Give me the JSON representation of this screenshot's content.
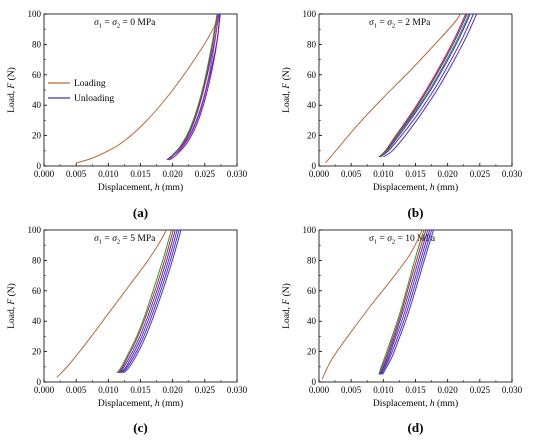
{
  "colors": {
    "loading": "#b8693a",
    "unloading": "#4a2ec6",
    "extra_unloading": [
      "#d11f1f",
      "#1f9a3c",
      "#d11fc4",
      "#f0a018",
      "#1c8fc9"
    ]
  },
  "legend": {
    "loading_label": "Loading",
    "unloading_label": "Unloading"
  },
  "chart_data": [
    {
      "type": "line",
      "panel_label": "(a)",
      "condition": {
        "sym1": "σ",
        "sub1": "1",
        "eq1": " = ",
        "sym2": "σ",
        "sub2": "2",
        "value": " = 0 MPa"
      },
      "xlabel": {
        "text": "Displacement, ",
        "var": "h",
        "unit": " (mm)"
      },
      "ylabel": {
        "text": "Load, ",
        "var": "F",
        "unit": " (N)"
      },
      "xlim": [
        0,
        0.03
      ],
      "ylim": [
        0,
        100
      ],
      "xticks": [
        "0.000",
        "0.005",
        "0.010",
        "0.015",
        "0.020",
        "0.025",
        "0.030"
      ],
      "yticks": [
        "0",
        "20",
        "40",
        "60",
        "80",
        "100"
      ],
      "legend": true,
      "series": [
        {
          "role": "loading",
          "x": [
            0.005,
            0.008,
            0.012,
            0.016,
            0.02,
            0.024,
            0.0265,
            0.027
          ],
          "y": [
            2,
            6,
            15,
            30,
            50,
            74,
            92,
            100
          ]
        },
        {
          "role": "unloading",
          "x": [
            0.0274,
            0.0268,
            0.0255,
            0.0242,
            0.0228,
            0.0214,
            0.0201,
            0.0192
          ],
          "y": [
            100,
            80,
            55,
            35,
            21,
            12,
            7,
            4
          ]
        },
        {
          "role": "unloading",
          "x": [
            0.0272,
            0.0264,
            0.0251,
            0.0238,
            0.0225,
            0.0212,
            0.0199,
            0.0191
          ],
          "y": [
            100,
            80,
            55,
            35,
            21,
            12,
            7,
            4
          ]
        },
        {
          "role": "unloading",
          "x": [
            0.0273,
            0.027,
            0.0262,
            0.0251,
            0.0238,
            0.0222,
            0.0205,
            0.0195
          ],
          "y": [
            100,
            85,
            65,
            45,
            28,
            15,
            7,
            4
          ]
        },
        {
          "role": "extra",
          "x": [
            0.027,
            0.0262,
            0.025,
            0.0237,
            0.0224,
            0.0211,
            0.02,
            0.0193
          ],
          "y": [
            100,
            80,
            55,
            35,
            21,
            12,
            7,
            4
          ]
        },
        {
          "role": "extra",
          "x": [
            0.0269,
            0.0261,
            0.0249,
            0.0236,
            0.0223,
            0.021,
            0.0199,
            0.0194
          ],
          "y": [
            100,
            80,
            55,
            35,
            21,
            12,
            7,
            4
          ]
        },
        {
          "role": "extra",
          "x": [
            0.0271,
            0.0265,
            0.0254,
            0.0241,
            0.0227,
            0.0213,
            0.0201,
            0.0195
          ],
          "y": [
            100,
            80,
            55,
            35,
            21,
            12,
            7,
            4
          ]
        }
      ]
    },
    {
      "type": "line",
      "panel_label": "(b)",
      "condition": {
        "sym1": "σ",
        "sub1": "1",
        "eq1": " = ",
        "sym2": "σ",
        "sub2": "2",
        "value": " = 2 MPa"
      },
      "xlabel": {
        "text": "Displacement, ",
        "var": "h",
        "unit": " (mm)"
      },
      "ylabel": {
        "text": "Load, ",
        "var": "F",
        "unit": " (N)"
      },
      "xlim": [
        0,
        0.03
      ],
      "ylim": [
        0,
        100
      ],
      "xticks": [
        "0.000",
        "0.005",
        "0.010",
        "0.015",
        "0.020",
        "0.025",
        "0.030"
      ],
      "yticks": [
        "0",
        "20",
        "40",
        "60",
        "80",
        "100"
      ],
      "legend": false,
      "series": [
        {
          "role": "loading",
          "x": [
            0.001,
            0.003,
            0.006,
            0.01,
            0.014,
            0.018,
            0.021,
            0.022
          ],
          "y": [
            2,
            12,
            27,
            45,
            62,
            80,
            94,
            100
          ]
        },
        {
          "role": "unloading",
          "x": [
            0.024,
            0.0224,
            0.0203,
            0.018,
            0.0155,
            0.013,
            0.0108,
            0.0095
          ],
          "y": [
            100,
            85,
            68,
            51,
            35,
            21,
            10,
            6
          ]
        },
        {
          "role": "unloading",
          "x": [
            0.0235,
            0.0219,
            0.0198,
            0.0175,
            0.015,
            0.0126,
            0.0106,
            0.0096
          ],
          "y": [
            100,
            85,
            68,
            51,
            35,
            21,
            10,
            6
          ]
        },
        {
          "role": "unloading",
          "x": [
            0.023,
            0.0214,
            0.0193,
            0.017,
            0.0146,
            0.0123,
            0.0104,
            0.0094
          ],
          "y": [
            100,
            85,
            68,
            51,
            35,
            21,
            10,
            6
          ]
        },
        {
          "role": "unloading",
          "x": [
            0.0245,
            0.0229,
            0.0208,
            0.0185,
            0.016,
            0.0136,
            0.0114,
            0.01
          ],
          "y": [
            100,
            85,
            68,
            51,
            35,
            21,
            10,
            6
          ]
        },
        {
          "role": "extra",
          "x": [
            0.0228,
            0.0212,
            0.0191,
            0.0168,
            0.0144,
            0.0121,
            0.0103,
            0.0093
          ],
          "y": [
            100,
            85,
            68,
            51,
            35,
            21,
            10,
            6
          ]
        },
        {
          "role": "extra",
          "x": [
            0.0233,
            0.0217,
            0.0196,
            0.0173,
            0.0148,
            0.0124,
            0.0105,
            0.0095
          ],
          "y": [
            100,
            85,
            68,
            51,
            35,
            21,
            10,
            6
          ]
        }
      ]
    },
    {
      "type": "line",
      "panel_label": "(c)",
      "condition": {
        "sym1": "σ",
        "sub1": "1",
        "eq1": " = ",
        "sym2": "σ",
        "sub2": "2",
        "value": " = 5 MPa"
      },
      "xlabel": {
        "text": "Displacement, ",
        "var": "h",
        "unit": " (mm)"
      },
      "ylabel": {
        "text": "Load, ",
        "var": "F",
        "unit": " (N)"
      },
      "xlim": [
        0,
        0.03
      ],
      "ylim": [
        0,
        100
      ],
      "xticks": [
        "0.000",
        "0.005",
        "0.010",
        "0.015",
        "0.020",
        "0.025",
        "0.030"
      ],
      "yticks": [
        "0",
        "20",
        "40",
        "60",
        "80",
        "100"
      ],
      "legend": false,
      "series": [
        {
          "role": "loading",
          "x": [
            0.002,
            0.004,
            0.007,
            0.01,
            0.013,
            0.016,
            0.018,
            0.019
          ],
          "y": [
            3,
            12,
            28,
            45,
            62,
            79,
            92,
            100
          ]
        },
        {
          "role": "unloading",
          "x": [
            0.021,
            0.0198,
            0.0183,
            0.0168,
            0.0154,
            0.014,
            0.0128,
            0.012
          ],
          "y": [
            100,
            82,
            62,
            44,
            29,
            17,
            9,
            6
          ]
        },
        {
          "role": "unloading",
          "x": [
            0.0207,
            0.0195,
            0.018,
            0.0165,
            0.0151,
            0.0137,
            0.0126,
            0.0119
          ],
          "y": [
            100,
            82,
            62,
            44,
            29,
            17,
            9,
            6
          ]
        },
        {
          "role": "unloading",
          "x": [
            0.0213,
            0.0201,
            0.0186,
            0.0171,
            0.0157,
            0.0143,
            0.0131,
            0.0123
          ],
          "y": [
            100,
            82,
            62,
            44,
            29,
            17,
            9,
            6
          ]
        },
        {
          "role": "unloading",
          "x": [
            0.0204,
            0.0192,
            0.0177,
            0.0162,
            0.0148,
            0.0134,
            0.0123,
            0.0117
          ],
          "y": [
            100,
            82,
            62,
            44,
            29,
            17,
            9,
            6
          ]
        },
        {
          "role": "extra",
          "x": [
            0.0201,
            0.0189,
            0.0174,
            0.0159,
            0.0145,
            0.0131,
            0.0121,
            0.0115
          ],
          "y": [
            100,
            82,
            62,
            44,
            29,
            17,
            9,
            6
          ]
        },
        {
          "role": "extra",
          "x": [
            0.0198,
            0.0186,
            0.0171,
            0.0157,
            0.0143,
            0.0129,
            0.0119,
            0.0113
          ],
          "y": [
            100,
            82,
            62,
            44,
            29,
            17,
            9,
            6
          ]
        }
      ]
    },
    {
      "type": "line",
      "panel_label": "(d)",
      "condition": {
        "sym1": "σ",
        "sub1": "1",
        "eq1": " = ",
        "sym2": "σ",
        "sub2": "2",
        "value": " = 10 MPa"
      },
      "xlabel": {
        "text": "Displacement, ",
        "var": "h",
        "unit": " (mm)"
      },
      "ylabel": {
        "text": "Load, ",
        "var": "F",
        "unit": " (N)"
      },
      "xlim": [
        0,
        0.03
      ],
      "ylim": [
        0,
        100
      ],
      "xticks": [
        "0.000",
        "0.005",
        "0.010",
        "0.015",
        "0.020",
        "0.025",
        "0.030"
      ],
      "yticks": [
        "0",
        "20",
        "40",
        "60",
        "80",
        "100"
      ],
      "legend": false,
      "series": [
        {
          "role": "loading",
          "x": [
            0.0005,
            0.002,
            0.005,
            0.008,
            0.011,
            0.014,
            0.0155,
            0.016
          ],
          "y": [
            2,
            15,
            33,
            50,
            66,
            83,
            95,
            100
          ]
        },
        {
          "role": "unloading",
          "x": [
            0.0175,
            0.0162,
            0.0148,
            0.0134,
            0.0121,
            0.011,
            0.0102,
            0.0097
          ],
          "y": [
            100,
            82,
            62,
            43,
            28,
            16,
            9,
            5
          ]
        },
        {
          "role": "unloading",
          "x": [
            0.0172,
            0.0159,
            0.0145,
            0.0131,
            0.0118,
            0.0108,
            0.01,
            0.0096
          ],
          "y": [
            100,
            82,
            62,
            43,
            28,
            16,
            9,
            5
          ]
        },
        {
          "role": "unloading",
          "x": [
            0.0178,
            0.0165,
            0.0151,
            0.0137,
            0.0124,
            0.0113,
            0.0104,
            0.0099
          ],
          "y": [
            100,
            82,
            62,
            43,
            28,
            16,
            9,
            5
          ]
        },
        {
          "role": "unloading",
          "x": [
            0.0169,
            0.0156,
            0.0142,
            0.0128,
            0.0116,
            0.0106,
            0.0099,
            0.0095
          ],
          "y": [
            100,
            82,
            62,
            43,
            28,
            16,
            9,
            5
          ]
        },
        {
          "role": "extra",
          "x": [
            0.0166,
            0.0153,
            0.0139,
            0.0126,
            0.0114,
            0.0104,
            0.0097,
            0.0094
          ],
          "y": [
            100,
            82,
            62,
            43,
            28,
            16,
            9,
            5
          ]
        },
        {
          "role": "extra",
          "x": [
            0.0163,
            0.015,
            0.0137,
            0.0124,
            0.0112,
            0.0102,
            0.0096,
            0.0093
          ],
          "y": [
            100,
            82,
            62,
            43,
            28,
            16,
            9,
            5
          ]
        }
      ]
    }
  ]
}
